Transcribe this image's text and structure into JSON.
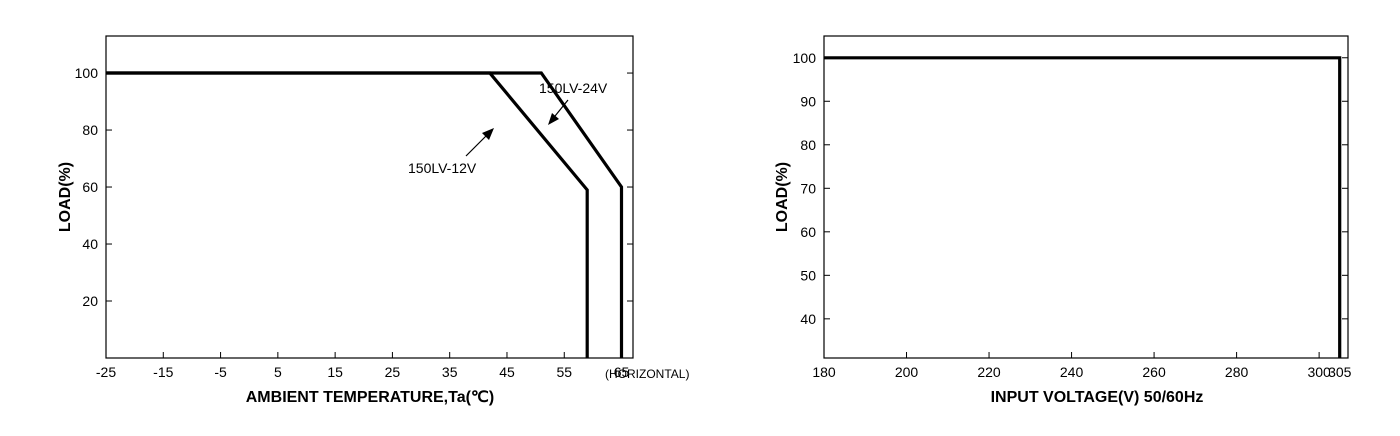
{
  "chart_data": [
    {
      "type": "line",
      "title": "",
      "xlabel": "AMBIENT TEMPERATURE,Ta(℃)",
      "ylabel": "LOAD(%)",
      "x_note": "(HORIZONTAL)",
      "xlim": [
        -25,
        67
      ],
      "ylim": [
        0,
        113
      ],
      "x_ticks": [
        -25,
        -15,
        -5,
        5,
        15,
        25,
        35,
        45,
        55,
        65
      ],
      "x_tick_labels": [
        "-25",
        "-15",
        "-5",
        "5",
        "15",
        "25",
        "35",
        "45",
        "55",
        "65"
      ],
      "y_ticks": [
        20,
        40,
        60,
        80,
        100
      ],
      "y_tick_labels": [
        "20",
        "40",
        "60",
        "80",
        "100"
      ],
      "grid": false,
      "series": [
        {
          "name": "150LV-12V",
          "x": [
            -25,
            42,
            59,
            59
          ],
          "y": [
            100,
            100,
            59,
            0
          ]
        },
        {
          "name": "150LV-24V",
          "x": [
            -25,
            51,
            65,
            65
          ],
          "y": [
            100,
            100,
            60,
            0
          ]
        }
      ],
      "annotations": [
        {
          "text": "150LV-12V",
          "series": 0
        },
        {
          "text": "150LV-24V",
          "series": 1
        }
      ]
    },
    {
      "type": "line",
      "title": "",
      "xlabel": "INPUT VOLTAGE(V)  50/60Hz",
      "ylabel": "LOAD(%)",
      "xlim": [
        180,
        307
      ],
      "ylim": [
        31,
        105
      ],
      "x_ticks": [
        180,
        200,
        220,
        240,
        260,
        280,
        300,
        305
      ],
      "x_tick_labels": [
        "180",
        "200",
        "220",
        "240",
        "260",
        "280",
        "300",
        "305"
      ],
      "y_ticks": [
        40,
        50,
        60,
        70,
        80,
        90,
        100
      ],
      "y_tick_labels": [
        "40",
        "50",
        "60",
        "70",
        "80",
        "90",
        "100"
      ],
      "grid": false,
      "series": [
        {
          "x": [
            180,
            305,
            305
          ],
          "y": [
            100,
            100,
            31
          ]
        }
      ]
    }
  ]
}
